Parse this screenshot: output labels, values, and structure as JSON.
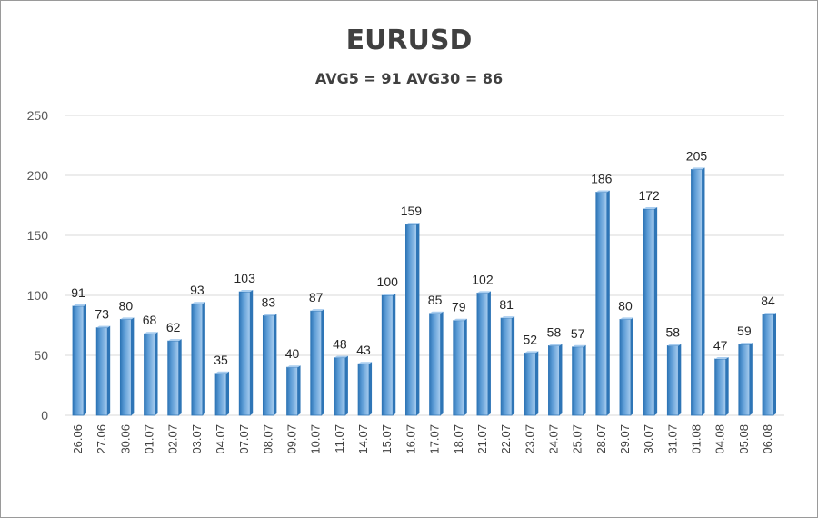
{
  "chart_data": {
    "type": "bar",
    "title": "EURUSD",
    "subtitle": "AVG5 = 91 AVG30 = 86",
    "xlabel": "",
    "ylabel": "",
    "ylim": [
      0,
      250
    ],
    "yticks": [
      "0",
      "50",
      "100",
      "150",
      "200",
      "250"
    ],
    "grid": true,
    "legend": "none",
    "colors": {
      "bar": "#5b9bd5",
      "bar_dark": "#2e75b6",
      "bar_light": "#a9cdef",
      "grid": "#d9d9d9"
    },
    "categories": [
      "26.06",
      "27.06",
      "30.06",
      "01.07",
      "02.07",
      "03.07",
      "04.07",
      "07.07",
      "08.07",
      "09.07",
      "10.07",
      "11.07",
      "14.07",
      "15.07",
      "16.07",
      "17.07",
      "18.07",
      "21.07",
      "22.07",
      "23.07",
      "24.07",
      "25.07",
      "28.07",
      "29.07",
      "30.07",
      "31.07",
      "01.08",
      "04.08",
      "05.08",
      "06.08"
    ],
    "values": [
      91,
      73,
      80,
      68,
      62,
      93,
      35,
      103,
      83,
      40,
      87,
      48,
      43,
      100,
      159,
      85,
      79,
      102,
      81,
      52,
      58,
      57,
      186,
      80,
      172,
      58,
      205,
      47,
      59,
      84
    ],
    "value_labels": [
      "91",
      "73",
      "80",
      "68",
      "62",
      "93",
      "35",
      "103",
      "83",
      "40",
      "87",
      "48",
      "43",
      "100",
      "159",
      "85",
      "79",
      "102",
      "81",
      "52",
      "58",
      "57",
      "186",
      "80",
      "172",
      "58",
      "205",
      "47",
      "59",
      "84"
    ]
  }
}
